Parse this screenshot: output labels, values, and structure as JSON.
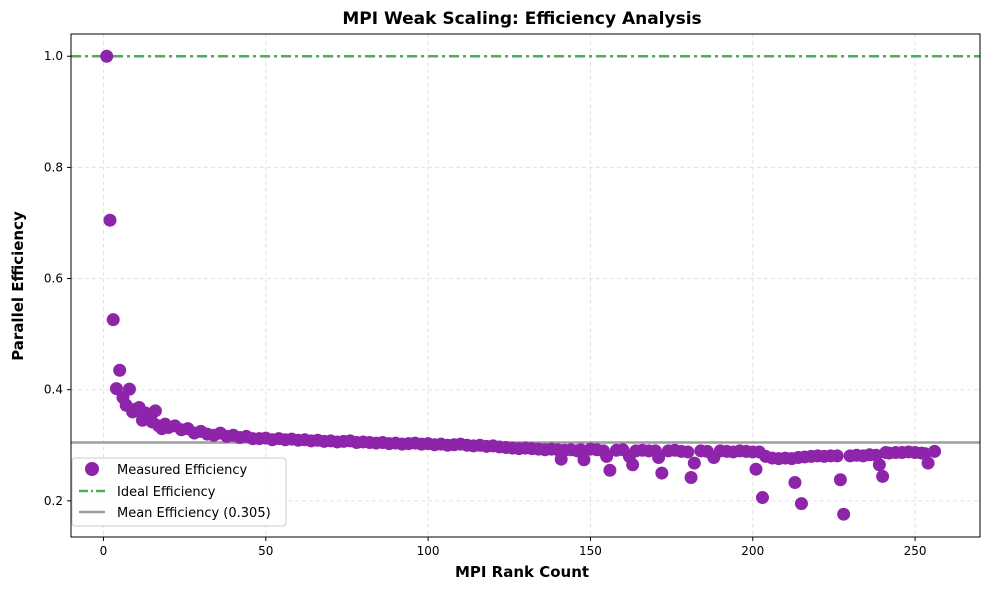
{
  "chart_data": {
    "type": "scatter",
    "title": "MPI Weak Scaling: Efficiency Analysis",
    "xlabel": "MPI Rank Count",
    "ylabel": "Parallel Efficiency",
    "xlim": [
      -10,
      270
    ],
    "ylim": [
      0.135,
      1.04
    ],
    "xticks": [
      0,
      50,
      100,
      150,
      200,
      250
    ],
    "yticks": [
      0.2,
      0.4,
      0.6,
      0.8,
      1.0
    ],
    "xtick_labels": [
      "0",
      "50",
      "100",
      "150",
      "200",
      "250"
    ],
    "ytick_labels": [
      "0.2",
      "0.4",
      "0.6",
      "0.8",
      "1.0"
    ],
    "grid": true,
    "legend_position": "lower-left",
    "reference_lines": [
      {
        "name": "Ideal Efficiency",
        "y": 1.0,
        "color": "#4caf50",
        "style": "dash-dot"
      },
      {
        "name": "Mean Efficiency (0.305)",
        "y": 0.305,
        "color": "#9e9e9e",
        "style": "solid"
      }
    ],
    "legend": [
      {
        "label": "Measured Efficiency",
        "kind": "marker",
        "color": "#8e24aa"
      },
      {
        "label": "Ideal Efficiency",
        "kind": "dashdot",
        "color": "#4caf50"
      },
      {
        "label": "Mean Efficiency (0.305)",
        "kind": "solid",
        "color": "#9e9e9e"
      }
    ],
    "series": [
      {
        "name": "Measured Efficiency",
        "color": "#8e24aa",
        "x": [
          1,
          2,
          3,
          4,
          5,
          6,
          7,
          8,
          9,
          10,
          11,
          12,
          13,
          14,
          15,
          16,
          17,
          18,
          19,
          20,
          22,
          24,
          26,
          28,
          30,
          32,
          34,
          36,
          38,
          40,
          42,
          44,
          46,
          48,
          50,
          52,
          54,
          56,
          58,
          60,
          62,
          64,
          66,
          68,
          70,
          72,
          74,
          76,
          78,
          80,
          82,
          84,
          86,
          88,
          90,
          92,
          94,
          96,
          98,
          100,
          102,
          104,
          106,
          108,
          110,
          112,
          114,
          116,
          118,
          120,
          122,
          124,
          126,
          128,
          130,
          132,
          134,
          136,
          138,
          140,
          141,
          142,
          144,
          146,
          147,
          148,
          150,
          152,
          154,
          155,
          156,
          158,
          160,
          162,
          163,
          164,
          166,
          168,
          170,
          171,
          172,
          174,
          176,
          178,
          180,
          181,
          182,
          184,
          186,
          188,
          190,
          192,
          194,
          196,
          198,
          200,
          201,
          202,
          203,
          204,
          206,
          208,
          210,
          212,
          213,
          214,
          215,
          216,
          218,
          220,
          222,
          224,
          226,
          227,
          228,
          230,
          232,
          234,
          236,
          238,
          239,
          240,
          241,
          242,
          244,
          246,
          248,
          250,
          252,
          253,
          254,
          256
        ],
        "y": [
          1.0,
          0.705,
          0.526,
          0.402,
          0.435,
          0.386,
          0.372,
          0.401,
          0.36,
          0.365,
          0.368,
          0.345,
          0.358,
          0.35,
          0.342,
          0.362,
          0.335,
          0.33,
          0.338,
          0.332,
          0.335,
          0.328,
          0.33,
          0.322,
          0.325,
          0.32,
          0.318,
          0.322,
          0.316,
          0.318,
          0.314,
          0.316,
          0.312,
          0.312,
          0.313,
          0.31,
          0.312,
          0.31,
          0.311,
          0.309,
          0.31,
          0.308,
          0.309,
          0.307,
          0.308,
          0.306,
          0.307,
          0.308,
          0.305,
          0.306,
          0.305,
          0.304,
          0.305,
          0.303,
          0.304,
          0.302,
          0.303,
          0.304,
          0.302,
          0.303,
          0.301,
          0.302,
          0.3,
          0.301,
          0.302,
          0.3,
          0.299,
          0.3,
          0.298,
          0.299,
          0.297,
          0.296,
          0.295,
          0.294,
          0.295,
          0.294,
          0.293,
          0.292,
          0.293,
          0.292,
          0.275,
          0.291,
          0.292,
          0.29,
          0.292,
          0.274,
          0.293,
          0.292,
          0.29,
          0.28,
          0.255,
          0.291,
          0.292,
          0.28,
          0.265,
          0.29,
          0.291,
          0.29,
          0.29,
          0.278,
          0.25,
          0.29,
          0.291,
          0.289,
          0.288,
          0.242,
          0.268,
          0.29,
          0.289,
          0.278,
          0.29,
          0.289,
          0.288,
          0.29,
          0.289,
          0.288,
          0.257,
          0.288,
          0.206,
          0.28,
          0.277,
          0.276,
          0.277,
          0.276,
          0.233,
          0.278,
          0.195,
          0.279,
          0.28,
          0.281,
          0.28,
          0.281,
          0.281,
          0.238,
          0.176,
          0.281,
          0.282,
          0.281,
          0.283,
          0.282,
          0.265,
          0.244,
          0.287,
          0.286,
          0.287,
          0.287,
          0.288,
          0.287,
          0.286,
          0.285,
          0.268,
          0.289
        ]
      }
    ]
  }
}
